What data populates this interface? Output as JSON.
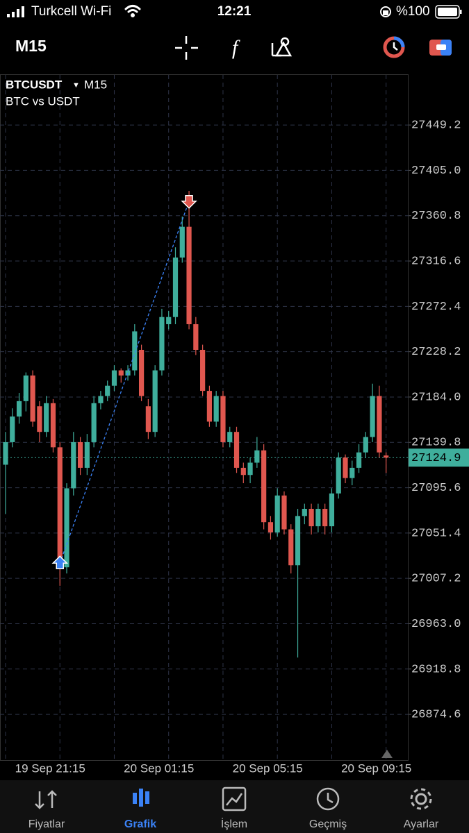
{
  "status_bar": {
    "carrier": "Turkcell Wi-Fi",
    "time": "12:21",
    "battery": "%100"
  },
  "toolbar": {
    "timeframe": "M15"
  },
  "tabs": [
    "Fiyatlar",
    "Grafik",
    "İşlem",
    "Geçmiş",
    "Ayarlar"
  ],
  "chart_data": {
    "type": "candlestick",
    "symbol": "BTCUSDT",
    "timeframe": "M15",
    "description": "BTC vs USDT",
    "up_color": "#3fae9c",
    "down_color": "#e0574f",
    "categories": [
      null,
      null,
      null,
      null,
      null,
      null,
      null,
      null,
      "19 Sep 21:15",
      null,
      null,
      null,
      null,
      null,
      null,
      null,
      null,
      null,
      null,
      null,
      null,
      null,
      null,
      null,
      "20 Sep 01:15",
      null,
      null,
      null,
      null,
      null,
      null,
      null,
      null,
      null,
      null,
      null,
      null,
      null,
      null,
      null,
      "20 Sep 05:15",
      null,
      null,
      null,
      null,
      null,
      null,
      null,
      null,
      null,
      null,
      null,
      null,
      null,
      null,
      null,
      "20 Sep 09:15"
    ],
    "open": [
      27118,
      27140,
      27165,
      27180,
      27205,
      27175,
      27150,
      27178,
      27135,
      27018,
      27095,
      27140,
      27115,
      27140,
      27178,
      27185,
      27195,
      27210,
      27205,
      27210,
      27230,
      27175,
      27150,
      27210,
      27255,
      27262,
      27320,
      27350,
      27255,
      27230,
      27190,
      27160,
      27185,
      27140,
      27150,
      27115,
      27108,
      27120,
      27132,
      27062,
      27052,
      27088,
      27055,
      27020,
      27068,
      27075,
      27058,
      27075,
      27058,
      27090,
      27125,
      27105,
      27115,
      27130,
      27145,
      27185,
      27127
    ],
    "high": [
      27150,
      27173,
      27188,
      27208,
      27210,
      27180,
      27185,
      27182,
      27140,
      27100,
      27150,
      27145,
      27148,
      27185,
      27190,
      27200,
      27215,
      27212,
      27215,
      27255,
      27235,
      27182,
      27215,
      27270,
      27268,
      27330,
      27360,
      27385,
      27262,
      27235,
      27195,
      27190,
      27190,
      27155,
      27155,
      27120,
      27125,
      27145,
      27138,
      27068,
      27095,
      27092,
      27060,
      27075,
      27080,
      27080,
      27080,
      27080,
      27095,
      27130,
      27128,
      27122,
      27138,
      27150,
      27197,
      27195,
      27130
    ],
    "low": [
      27070,
      27135,
      27158,
      27170,
      27155,
      27140,
      27145,
      27130,
      27000,
      27012,
      27088,
      27108,
      27108,
      27135,
      27172,
      27180,
      27190,
      27198,
      27200,
      27205,
      27180,
      27143,
      27145,
      27205,
      27250,
      27255,
      27315,
      27250,
      27225,
      27185,
      27155,
      27155,
      27135,
      27135,
      27110,
      27100,
      27100,
      27115,
      27055,
      27045,
      27048,
      27050,
      27012,
      26930,
      27060,
      27050,
      27052,
      27050,
      27052,
      27085,
      27100,
      27098,
      27110,
      27125,
      27140,
      27125,
      27110
    ],
    "close": [
      27140,
      27165,
      27180,
      27205,
      27160,
      27150,
      27178,
      27135,
      27018,
      27095,
      27140,
      27115,
      27140,
      27178,
      27185,
      27195,
      27210,
      27205,
      27210,
      27248,
      27185,
      27150,
      27210,
      27262,
      27262,
      27320,
      27350,
      27255,
      27230,
      27190,
      27160,
      27185,
      27140,
      27150,
      27115,
      27108,
      27120,
      27132,
      27062,
      27052,
      27088,
      27055,
      27020,
      27068,
      27075,
      27058,
      27075,
      27058,
      27090,
      27125,
      27105,
      27115,
      27130,
      27145,
      27185,
      27130,
      27124.9
    ],
    "ylim": [
      26830,
      27498
    ],
    "yticks": [
      27449.2,
      {
        "value": 27405.0,
        "label": "27405.0"
      },
      27360.8,
      27316.6,
      27272.4,
      27228.2,
      {
        "value": 27184.0,
        "label": "27184.0"
      },
      27139.8,
      27095.6,
      27051.4,
      27007.2,
      {
        "value": 26963.0,
        "label": "26963.0"
      },
      26918.8,
      26874.6
    ],
    "last_price": 27124.9,
    "trade": {
      "open": 27022,
      "close": 27375
    },
    "grid": true
  }
}
